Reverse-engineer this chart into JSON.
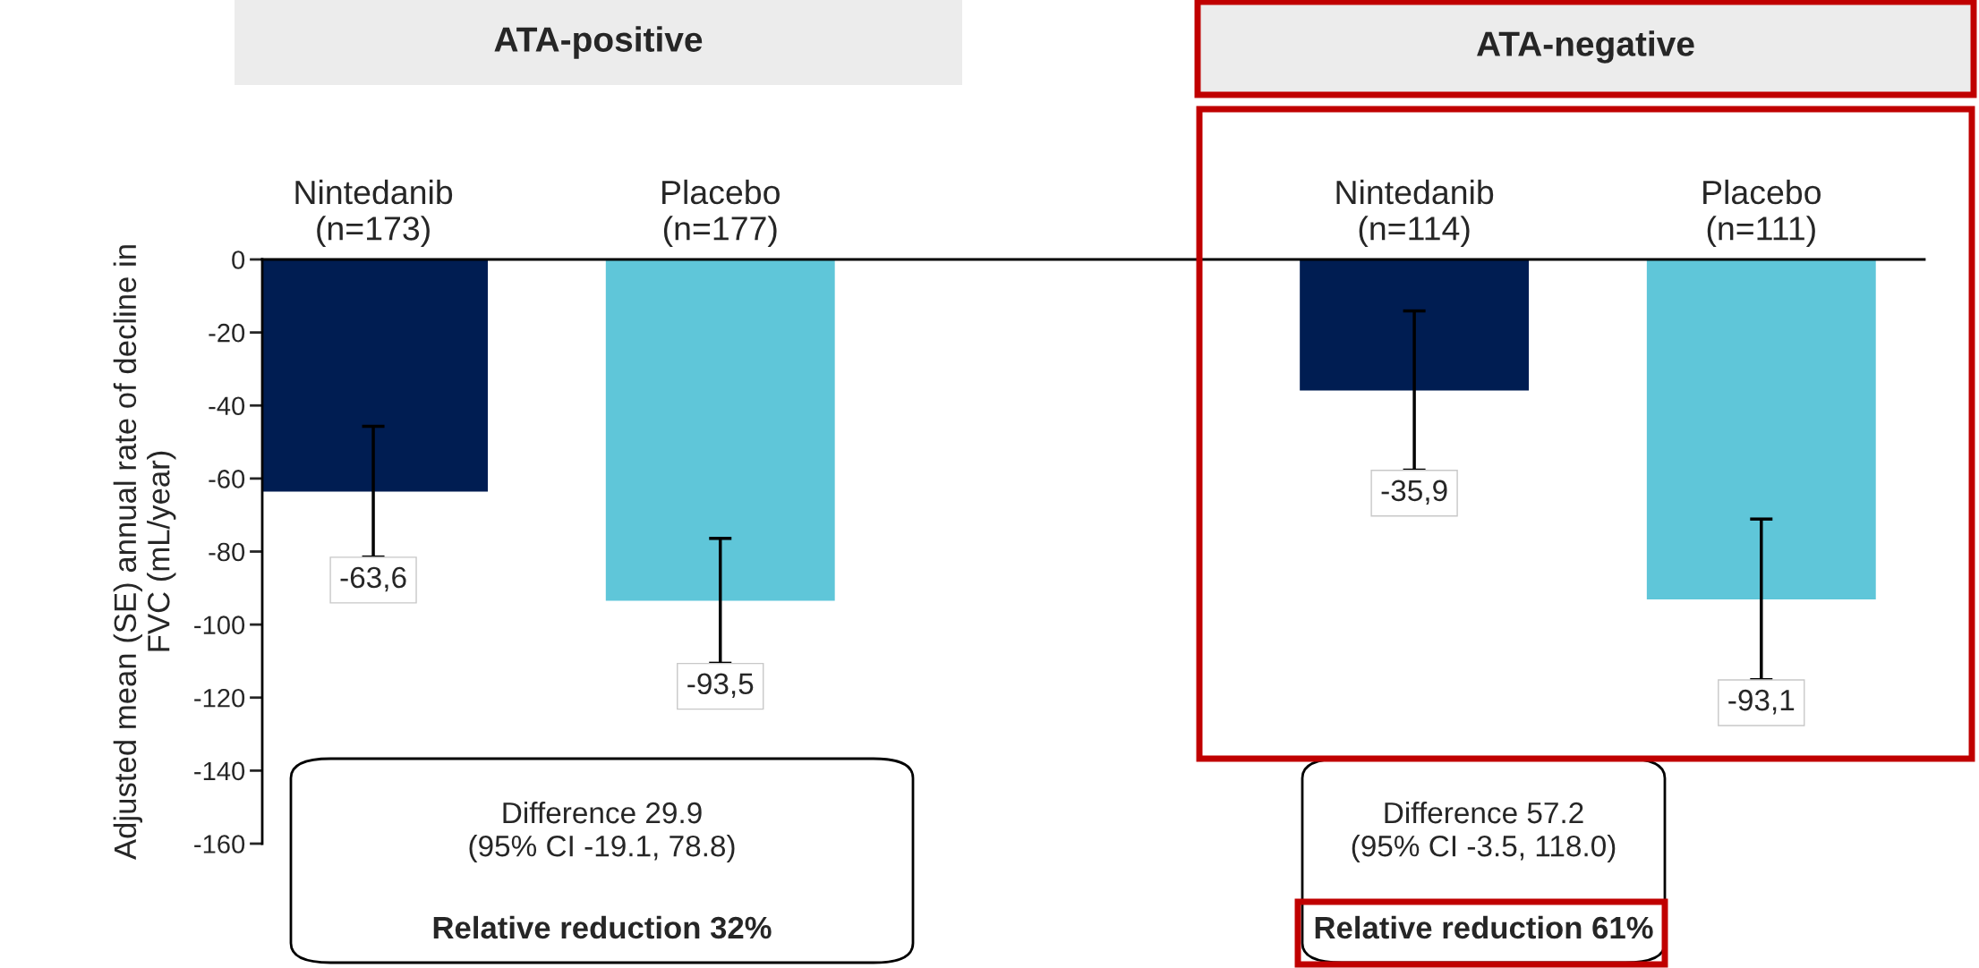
{
  "chart_data": {
    "type": "bar",
    "categories": [
      "Nintedanib\n(n=173)",
      "Placebo\n(n=177)",
      null,
      "Nintedanib\n(n=114)",
      "Placebo\n(n=111)"
    ],
    "values": [
      -63.6,
      -93.5,
      null,
      -35.9,
      -93.1
    ],
    "colors": [
      "#001d52",
      "#5fc6d9",
      null,
      "#001d52",
      "#5fc6d9"
    ],
    "errors": [
      17.9,
      17.1,
      null,
      21.8,
      22.0
    ],
    "value_labels": [
      "-63,6",
      "-93,5",
      null,
      "-35,9",
      "-93,1"
    ],
    "ylabel": "Adjusted mean (SE) annual rate of decline in\nFVC (mL/year)",
    "ylim": [
      -160,
      0
    ],
    "yticks": [
      0,
      -20,
      -40,
      -60,
      -80,
      -100,
      -120,
      -140,
      -160
    ],
    "grid": false,
    "legend": false,
    "annotations": [
      "ATA-positive",
      "ATA-negative",
      "Difference 29.9\n(95% CI -19.1, 78.8)",
      "Relative reduction 32%",
      "Difference 57.2\n(95% CI -3.5, 118.0)",
      "Relative reduction 61%"
    ]
  }
}
